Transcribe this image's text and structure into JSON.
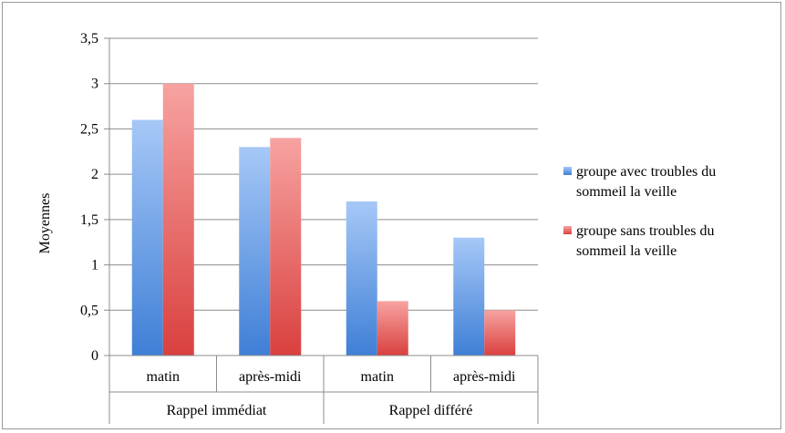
{
  "chart_data": {
    "type": "bar",
    "title": "",
    "ylabel": "Moyennes",
    "xlabel": "",
    "ylim": [
      0,
      3.5
    ],
    "yticks": [
      0,
      0.5,
      1,
      1.5,
      2,
      2.5,
      3,
      3.5
    ],
    "ytick_labels": [
      "0",
      "0,5",
      "1",
      "1,5",
      "2",
      "2,5",
      "3",
      "3,5"
    ],
    "groups": [
      {
        "label": "Rappel immédiat",
        "categories": [
          "matin",
          "après-midi"
        ]
      },
      {
        "label": "Rappel différé",
        "categories": [
          "matin",
          "après-midi"
        ]
      }
    ],
    "categories": [
      "matin",
      "après-midi",
      "matin",
      "après-midi"
    ],
    "series": [
      {
        "name": "groupe avec troubles du sommeil la veille",
        "values": [
          2.6,
          2.3,
          1.7,
          1.3
        ],
        "color": "#4a86dc"
      },
      {
        "name": "groupe sans troubles du sommeil la veille",
        "values": [
          3.0,
          2.4,
          0.6,
          0.5
        ],
        "color": "#e0504f"
      }
    ],
    "grid": true,
    "legend_position": "right",
    "legend": [
      {
        "lines": [
          "groupe avec troubles du",
          "sommeil la veille"
        ]
      },
      {
        "lines": [
          "groupe sans troubles du",
          "sommeil la veille"
        ]
      }
    ]
  }
}
